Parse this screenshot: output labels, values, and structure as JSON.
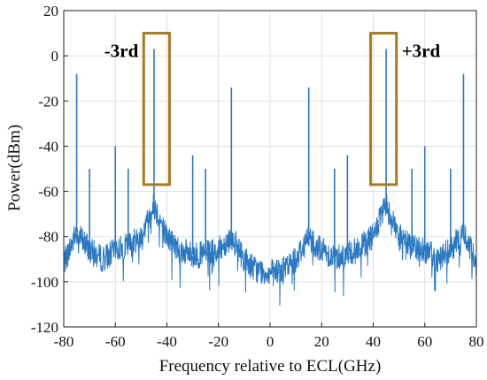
{
  "chart_data": {
    "type": "line",
    "title": "",
    "xlabel": "Frequency relative to ECL(GHz)",
    "ylabel": "Power(dBm)",
    "xlim": [
      -80,
      80
    ],
    "ylim": [
      -120,
      20
    ],
    "xticks": [
      -80,
      -60,
      -40,
      -20,
      0,
      20,
      40,
      60,
      80
    ],
    "yticks": [
      -120,
      -100,
      -80,
      -60,
      -40,
      -20,
      0,
      20
    ],
    "grid": true,
    "colors": {
      "trace": "#2b79c2",
      "box": "#a67c1e",
      "grid": "#d9d9d9"
    },
    "noise_floor": {
      "x": [
        -80,
        -75,
        -70,
        -65,
        -60,
        -55,
        -50,
        -45,
        -40,
        -35,
        -30,
        -25,
        -20,
        -15,
        -10,
        -5,
        0,
        5,
        10,
        15,
        20,
        25,
        30,
        35,
        40,
        45,
        50,
        55,
        60,
        65,
        70,
        75,
        80
      ],
      "y": [
        -92,
        -78,
        -86,
        -90,
        -86,
        -84,
        -80,
        -66,
        -80,
        -86,
        -88,
        -88,
        -86,
        -80,
        -90,
        -95,
        -96,
        -95,
        -90,
        -80,
        -86,
        -89,
        -88,
        -85,
        -80,
        -66,
        -80,
        -84,
        -86,
        -90,
        -86,
        -78,
        -92
      ]
    },
    "peaks": {
      "x": [
        -75,
        -70,
        -60,
        -55,
        -45,
        -30,
        -25,
        -15,
        15,
        25,
        30,
        45,
        55,
        60,
        70,
        75
      ],
      "y": [
        -8,
        -50,
        -40,
        -50,
        3,
        -44,
        -50,
        -14,
        -14,
        -50,
        -44,
        3,
        -50,
        -40,
        -50,
        -8
      ]
    },
    "annotations": [
      {
        "text": "-3rd",
        "box_x": [
          -49,
          -39
        ],
        "box_y": [
          -57,
          10
        ]
      },
      {
        "text": "+3rd",
        "box_x": [
          39,
          49
        ],
        "box_y": [
          -57,
          10
        ]
      }
    ]
  }
}
